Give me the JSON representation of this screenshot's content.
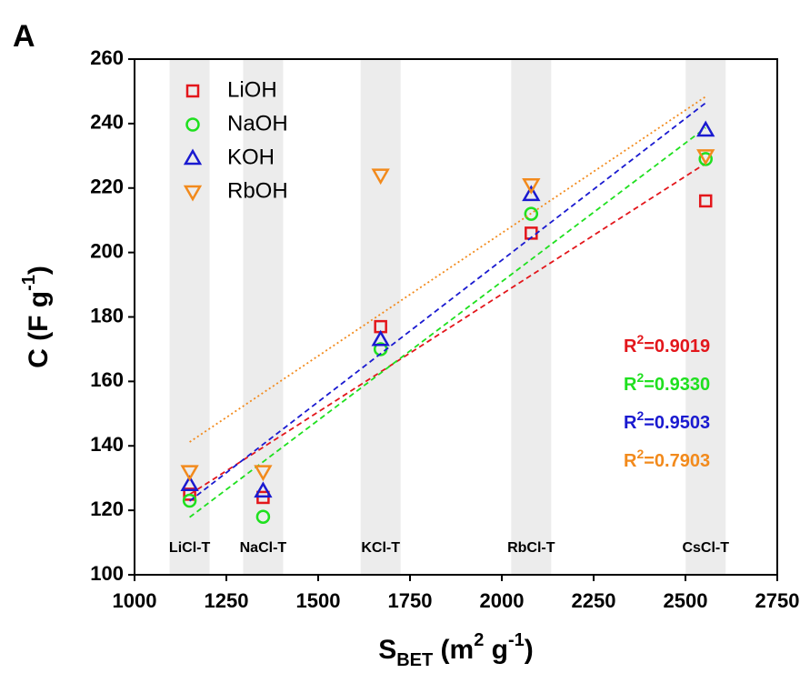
{
  "chart_data": {
    "type": "scatter",
    "panel_label": "A",
    "xlabel": [
      {
        "text": "S"
      },
      {
        "sub": "BET"
      },
      {
        "text": " (m"
      },
      {
        "sup": "2"
      },
      {
        "text": " g"
      },
      {
        "sup": "-1"
      },
      {
        "text": ")"
      }
    ],
    "ylabel": [
      {
        "text": "C (F g"
      },
      {
        "sup": "-1"
      },
      {
        "text": ")"
      }
    ],
    "x": [
      1150,
      1350,
      1670,
      2080,
      2555
    ],
    "sample_labels": [
      "LiCl-T",
      "NaCl-T",
      "KCl-T",
      "RbCl-T",
      "CsCl-T"
    ],
    "series": [
      {
        "name": "LiOH",
        "color": "#e3161b",
        "marker": "square",
        "line": "dashed",
        "values": [
          125,
          124,
          177,
          206,
          216
        ],
        "fit_label": {
          "r": "R",
          "sup": "2",
          "rest": "=0.9019"
        }
      },
      {
        "name": "NaOH",
        "color": "#1fe01f",
        "marker": "circle",
        "line": "dashed",
        "values": [
          123,
          118,
          170,
          212,
          229
        ],
        "fit_label": {
          "r": "R",
          "sup": "2",
          "rest": "=0.9330"
        }
      },
      {
        "name": "KOH",
        "color": "#1a1ad0",
        "marker": "triangle-up",
        "line": "dashed",
        "values": [
          128,
          126,
          173,
          218,
          238
        ],
        "fit_label": {
          "r": "R",
          "sup": "2",
          "rest": "=0.9503"
        }
      },
      {
        "name": "RbOH",
        "color": "#f28a1c",
        "marker": "triangle-down",
        "line": "dotted",
        "values": [
          132,
          132,
          224,
          221,
          230
        ],
        "fit_label": {
          "r": "R",
          "sup": "2",
          "rest": "=0.7903"
        }
      }
    ],
    "xlim": [
      1000,
      2750
    ],
    "ylim": [
      100,
      260
    ],
    "xticks": [
      1000,
      1250,
      1500,
      1750,
      2000,
      2250,
      2500,
      2750
    ],
    "yticks": [
      100,
      120,
      140,
      160,
      180,
      200,
      220,
      240,
      260
    ],
    "legend": "upper left"
  }
}
